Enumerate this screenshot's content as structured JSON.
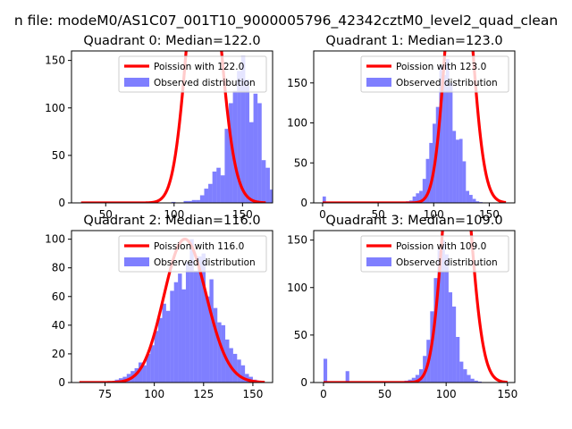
{
  "figure": {
    "suptitle": "n file: modeM0/AS1C07_001T10_9000005796_42342cztM0_level2_quad_clean"
  },
  "colors": {
    "fit_line": "#ff0000",
    "histogram": "#0000ff",
    "histogram_alpha": 0.5
  },
  "chart_data": [
    {
      "type": "bar",
      "title": "Quadrant 0: Median=122.0",
      "xlim": [
        25,
        172
      ],
      "ylim": [
        0,
        160
      ],
      "xticks": [
        50,
        100,
        150
      ],
      "yticks": [
        0,
        50,
        100,
        150
      ],
      "legend": {
        "location": "top-right",
        "line_label": "Poission with 122.0",
        "bar_label": "Observed distribution"
      },
      "poisson_mean": 122.0,
      "poisson_scale": 8800,
      "fit_x_range": [
        32,
        167
      ],
      "hist": {
        "bin_start": 32,
        "bin_width": 3,
        "counts": [
          0,
          0,
          0,
          0,
          0,
          0,
          0,
          0,
          0,
          0,
          0,
          0,
          0,
          0,
          0,
          0,
          0,
          0,
          0,
          0,
          0,
          0,
          1,
          0,
          0,
          2,
          2,
          3,
          3,
          8,
          15,
          20,
          33,
          37,
          29,
          78,
          105,
          118,
          139,
          155,
          130,
          85,
          115,
          105,
          45,
          37,
          14,
          10,
          6,
          3,
          1,
          1,
          0,
          0,
          0,
          0
        ]
      }
    },
    {
      "type": "bar",
      "title": "Quadrant 1: Median=123.0",
      "xlim": [
        -8,
        173
      ],
      "ylim": [
        0,
        190
      ],
      "xticks": [
        0,
        50,
        100,
        150
      ],
      "yticks": [
        0,
        50,
        100,
        150
      ],
      "legend": {
        "location": "top-right",
        "line_label": "Poission with 123.0",
        "bar_label": "Observed distribution"
      },
      "poisson_mean": 123.0,
      "poisson_scale": 10100,
      "fit_x_range": [
        0,
        165
      ],
      "hist": {
        "bin_start": 0,
        "bin_width": 3,
        "counts": [
          8,
          0,
          0,
          0,
          0,
          0,
          0,
          0,
          0,
          0,
          0,
          0,
          0,
          0,
          0,
          0,
          0,
          0,
          0,
          0,
          0,
          0,
          0,
          1,
          1,
          2,
          3,
          8,
          12,
          15,
          30,
          55,
          75,
          99,
          120,
          172,
          160,
          180,
          150,
          90,
          79,
          80,
          52,
          15,
          10,
          5,
          2,
          1,
          0,
          0,
          0,
          0,
          0,
          0,
          0
        ]
      }
    },
    {
      "type": "bar",
      "title": "Quadrant 2: Median=116.0",
      "xlim": [
        58,
        160
      ],
      "ylim": [
        0,
        106
      ],
      "xticks": [
        75,
        100,
        125,
        150
      ],
      "yticks": [
        0,
        20,
        40,
        60,
        80,
        100
      ],
      "legend": {
        "location": "top-right",
        "line_label": "Poission with 116.0",
        "bar_label": "Observed distribution"
      },
      "poisson_mean": 116.0,
      "poisson_scale": 2700,
      "fit_x_range": [
        62,
        156
      ],
      "hist": {
        "bin_start": 62,
        "bin_width": 2,
        "counts": [
          0,
          0,
          0,
          0,
          0,
          0,
          0,
          0,
          0,
          2,
          3,
          4,
          6,
          8,
          10,
          14,
          12,
          20,
          26,
          36,
          45,
          55,
          50,
          64,
          70,
          76,
          65,
          84,
          100,
          78,
          88,
          90,
          60,
          72,
          52,
          42,
          40,
          30,
          24,
          20,
          16,
          12,
          6,
          4,
          2,
          1,
          0
        ]
      }
    },
    {
      "type": "bar",
      "title": "Quadrant 3: Median=109.0",
      "xlim": [
        -8,
        156
      ],
      "ylim": [
        0,
        160
      ],
      "xticks": [
        0,
        50,
        100,
        150
      ],
      "yticks": [
        0,
        50,
        100,
        150
      ],
      "legend": {
        "location": "top-right",
        "line_label": "Poission with 109.0",
        "bar_label": "Observed distribution"
      },
      "poisson_mean": 109.0,
      "poisson_scale": 7800,
      "fit_x_range": [
        0,
        150
      ],
      "hist": {
        "bin_start": 0,
        "bin_width": 3,
        "counts": [
          25,
          0,
          0,
          0,
          0,
          0,
          12,
          0,
          0,
          0,
          0,
          0,
          0,
          0,
          0,
          0,
          0,
          0,
          0,
          0,
          0,
          1,
          2,
          3,
          5,
          8,
          14,
          28,
          45,
          75,
          110,
          140,
          150,
          135,
          95,
          80,
          48,
          22,
          14,
          8,
          4,
          2,
          1,
          0,
          0,
          0,
          0,
          0,
          0,
          0
        ]
      }
    }
  ]
}
